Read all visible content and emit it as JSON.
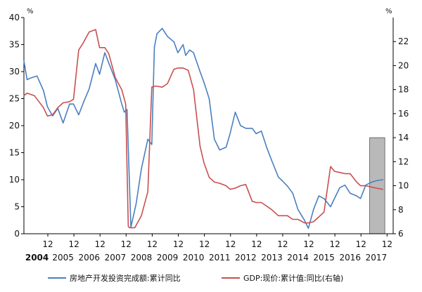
{
  "chart_data": {
    "type": "line",
    "left_axis_unit": "%",
    "right_axis_unit": "%",
    "ylim_left": [
      0,
      40
    ],
    "ylim_right": [
      6,
      24
    ],
    "left_ticks": [
      0,
      5,
      10,
      15,
      20,
      25,
      30,
      35,
      40
    ],
    "right_ticks": [
      6,
      8,
      10,
      12,
      14,
      16,
      18,
      20,
      22
    ],
    "x_range": [
      2004.0,
      2018.15
    ],
    "month_tick_label": "12",
    "years": [
      "2004",
      "2005",
      "2006",
      "2007",
      "2008",
      "2009",
      "2010",
      "2011",
      "2012",
      "2013",
      "2014",
      "2015",
      "2016",
      "2017"
    ],
    "shade": {
      "x_from": 2017.25,
      "x_to": 2017.83,
      "top_right_value": 14,
      "color": "#b9b9b9"
    },
    "grid": false,
    "legend_position": "bottom",
    "series": [
      {
        "name": "房地产开发投资完成额:累计同比",
        "axis": "left",
        "color": "#4a7fbf",
        "x": [
          2004.0,
          2004.12,
          2004.25,
          2004.5,
          2004.75,
          2004.9,
          2005.1,
          2005.3,
          2005.5,
          2005.75,
          2005.9,
          2006.1,
          2006.3,
          2006.5,
          2006.75,
          2006.9,
          2007.1,
          2007.3,
          2007.5,
          2007.75,
          2007.85,
          2007.95,
          2008.1,
          2008.3,
          2008.5,
          2008.75,
          2008.9,
          2009.0,
          2009.1,
          2009.3,
          2009.5,
          2009.75,
          2009.9,
          2010.1,
          2010.2,
          2010.35,
          2010.5,
          2010.75,
          2010.9,
          2011.1,
          2011.3,
          2011.5,
          2011.75,
          2011.9,
          2012.1,
          2012.3,
          2012.5,
          2012.75,
          2012.9,
          2013.1,
          2013.3,
          2013.5,
          2013.75,
          2013.9,
          2014.1,
          2014.3,
          2014.5,
          2014.75,
          2014.9,
          2015.1,
          2015.3,
          2015.5,
          2015.75,
          2015.9,
          2016.1,
          2016.3,
          2016.5,
          2016.75,
          2016.9,
          2017.1,
          2017.3,
          2017.5,
          2017.75
        ],
        "values": [
          32,
          28.5,
          28.8,
          29.2,
          26.5,
          23.5,
          21.8,
          23.2,
          20.5,
          24.0,
          24.0,
          22.0,
          24.5,
          26.8,
          31.5,
          29.5,
          33.5,
          31.0,
          28.5,
          24.0,
          22.5,
          23.0,
          1.2,
          5.5,
          12.0,
          17.5,
          16.5,
          34.5,
          37.0,
          38.0,
          36.5,
          35.5,
          33.5,
          35.0,
          33.0,
          34.0,
          33.5,
          30.0,
          28.0,
          25.0,
          17.5,
          15.5,
          16.0,
          18.5,
          22.5,
          20.0,
          19.5,
          19.5,
          18.5,
          19.0,
          16.0,
          13.5,
          10.5,
          9.8,
          8.8,
          7.5,
          4.5,
          2.5,
          1.0,
          4.5,
          7.0,
          6.5,
          5.0,
          6.5,
          8.5,
          9.0,
          7.5,
          7.0,
          6.5,
          9.0,
          9.5,
          9.8,
          10.0
        ]
      },
      {
        "name": "GDP:现价:累计值:同比(右轴)",
        "axis": "right",
        "color": "#c94f4f",
        "x": [
          2004.0,
          2004.12,
          2004.4,
          2004.75,
          2004.9,
          2005.1,
          2005.3,
          2005.5,
          2005.75,
          2005.9,
          2006.1,
          2006.25,
          2006.5,
          2006.75,
          2006.9,
          2007.1,
          2007.25,
          2007.5,
          2007.75,
          2007.9,
          2008.0,
          2008.05,
          2008.25,
          2008.5,
          2008.75,
          2008.9,
          2009.05,
          2009.3,
          2009.5,
          2009.75,
          2009.9,
          2010.1,
          2010.3,
          2010.5,
          2010.75,
          2010.9,
          2011.1,
          2011.3,
          2011.5,
          2011.75,
          2011.9,
          2012.1,
          2012.3,
          2012.5,
          2012.75,
          2012.9,
          2013.1,
          2013.3,
          2013.5,
          2013.75,
          2013.9,
          2014.1,
          2014.3,
          2014.5,
          2014.75,
          2014.9,
          2015.1,
          2015.3,
          2015.5,
          2015.75,
          2015.9,
          2016.1,
          2016.3,
          2016.5,
          2016.75,
          2016.9,
          2017.1,
          2017.3,
          2017.5,
          2017.75
        ],
        "values": [
          17.5,
          17.7,
          17.5,
          16.5,
          15.8,
          15.9,
          16.5,
          16.9,
          17.0,
          17.2,
          21.3,
          21.8,
          22.8,
          23.0,
          21.5,
          21.5,
          21.0,
          19.0,
          18.0,
          16.8,
          6.6,
          6.5,
          6.5,
          7.5,
          9.5,
          18.2,
          18.3,
          18.2,
          18.5,
          19.7,
          19.8,
          19.8,
          19.6,
          18.0,
          13.3,
          11.9,
          10.7,
          10.3,
          10.2,
          10.0,
          9.7,
          9.8,
          10.0,
          10.1,
          8.7,
          8.6,
          8.6,
          8.3,
          8.0,
          7.5,
          7.5,
          7.5,
          7.2,
          7.2,
          6.9,
          6.9,
          7.0,
          7.4,
          7.8,
          11.6,
          11.2,
          11.1,
          11.0,
          11.0,
          10.3,
          10.0,
          10.0,
          9.9,
          9.8,
          9.7
        ]
      }
    ]
  }
}
